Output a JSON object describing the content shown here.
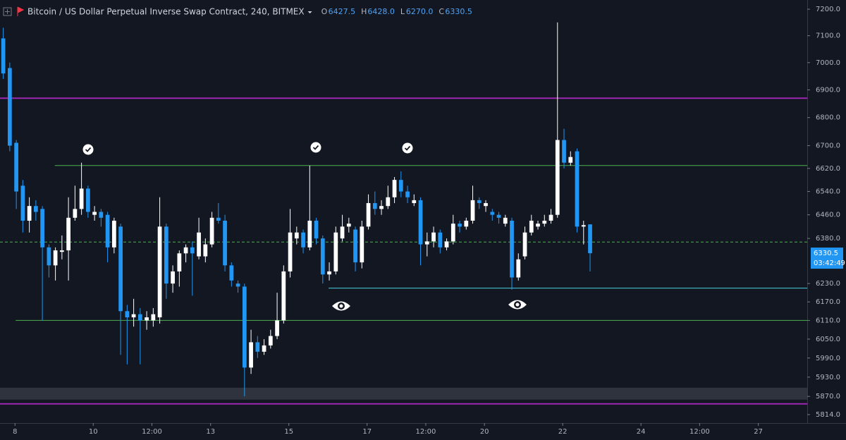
{
  "chart_data": {
    "type": "candlestick",
    "title": "Bitcoin / US Dollar Perpetual Inverse Swap Contract, 240, BITMEX",
    "legend": [
      {
        "key": "O",
        "text": "6427.5"
      },
      {
        "key": "H",
        "text": "6428.0"
      },
      {
        "key": "L",
        "text": "6270.0"
      },
      {
        "key": "C",
        "text": "6330.5"
      }
    ],
    "price_tag": {
      "price": "6330.5",
      "countdown": "03:42:49"
    },
    "up_color": "#ffffff",
    "down_color": "#2196f3",
    "log": true,
    "grid": false,
    "open": [
      7090,
      6980,
      6710,
      6560,
      6440,
      6490,
      6480,
      6350,
      6290,
      6335,
      6340,
      6450,
      6480,
      6550,
      6460,
      6470,
      6460,
      6350,
      6420,
      6140,
      6120,
      6130,
      6110,
      6110,
      6120,
      6420,
      6230,
      6270,
      6330,
      6350,
      6320,
      6320,
      6360,
      6450,
      6440,
      6290,
      6230,
      6220,
      5960,
      6040,
      6010,
      6030,
      6060,
      6110,
      6270,
      6380,
      6400,
      6350,
      6440,
      6380,
      6260,
      6270,
      6380,
      6420,
      6410,
      6300,
      6420,
      6500,
      6480,
      6490,
      6520,
      6580,
      6540,
      6500,
      6510,
      6360,
      6370,
      6400,
      6350,
      6370,
      6430,
      6420,
      6440,
      6510,
      6490,
      6470,
      6460,
      6430,
      6440,
      6250,
      6320,
      6400,
      6420,
      6430,
      6440,
      6460,
      6720,
      6640,
      6680,
      6420,
      6427.5
    ],
    "close": [
      6960,
      6700,
      6540,
      6440,
      6490,
      6470,
      6350,
      6290,
      6340,
      6340,
      6450,
      6480,
      6550,
      6470,
      6470,
      6450,
      6350,
      6440,
      6140,
      6120,
      6130,
      6110,
      6120,
      6130,
      6420,
      6230,
      6270,
      6330,
      6350,
      6330,
      6400,
      6360,
      6450,
      6440,
      6290,
      6240,
      6220,
      5960,
      6040,
      6010,
      6030,
      6060,
      6110,
      6270,
      6400,
      6400,
      6350,
      6440,
      6380,
      6260,
      6270,
      6400,
      6420,
      6430,
      6300,
      6420,
      6500,
      6480,
      6490,
      6520,
      6580,
      6540,
      6520,
      6510,
      6360,
      6370,
      6400,
      6350,
      6370,
      6430,
      6420,
      6440,
      6510,
      6500,
      6500,
      6460,
      6450,
      6450,
      6250,
      6310,
      6400,
      6440,
      6430,
      6440,
      6460,
      6720,
      6640,
      6660,
      6420,
      6425,
      6330.5
    ],
    "high": [
      7130,
      7000,
      6720,
      6580,
      6520,
      6510,
      6490,
      6360,
      6350,
      6390,
      6520,
      6560,
      6640,
      6560,
      6490,
      6480,
      6470,
      6450,
      6430,
      6160,
      6180,
      6150,
      6140,
      6150,
      6520,
      6430,
      6290,
      6340,
      6360,
      6370,
      6450,
      6380,
      6470,
      6500,
      6460,
      6300,
      6240,
      6230,
      6080,
      6060,
      6050,
      6080,
      6200,
      6290,
      6480,
      6420,
      6410,
      6630,
      6450,
      6390,
      6300,
      6420,
      6460,
      6450,
      6420,
      6440,
      6530,
      6540,
      6510,
      6560,
      6590,
      6610,
      6560,
      6530,
      6520,
      6400,
      6420,
      6410,
      6380,
      6460,
      6440,
      6450,
      6560,
      6520,
      6510,
      6480,
      6470,
      6460,
      6450,
      6330,
      6420,
      6460,
      6440,
      6460,
      6480,
      7150,
      6760,
      6680,
      6690,
      6440,
      6428
    ],
    "low": [
      6940,
      6680,
      6480,
      6400,
      6400,
      6440,
      6110,
      6250,
      6240,
      6310,
      6240,
      6440,
      6460,
      6450,
      6440,
      6420,
      6300,
      6330,
      6000,
      5970,
      6090,
      5970,
      6080,
      6090,
      6100,
      6180,
      6200,
      6220,
      6300,
      6190,
      6310,
      6300,
      6350,
      6430,
      6270,
      6220,
      6200,
      5870,
      5940,
      5990,
      6000,
      6020,
      6050,
      6100,
      6250,
      6360,
      6330,
      6340,
      6360,
      6230,
      6240,
      6260,
      6370,
      6400,
      6270,
      6280,
      6410,
      6460,
      6460,
      6480,
      6500,
      6520,
      6500,
      6490,
      6290,
      6320,
      6350,
      6330,
      6340,
      6360,
      6400,
      6410,
      6430,
      6480,
      6470,
      6440,
      6430,
      6420,
      6210,
      6240,
      6310,
      6390,
      6410,
      6420,
      6430,
      6450,
      6620,
      6630,
      6400,
      6360,
      6270
    ],
    "xlim": [
      -0.5,
      123.3
    ],
    "ylim": [
      5788,
      7235
    ],
    "xticks": [
      {
        "value": 1.8,
        "label": "8"
      },
      {
        "value": 13.8,
        "label": "10"
      },
      {
        "value": 22.8,
        "label": "12:00"
      },
      {
        "value": 31.8,
        "label": "13"
      },
      {
        "value": 43.8,
        "label": "15"
      },
      {
        "value": 55.8,
        "label": "17"
      },
      {
        "value": 64.8,
        "label": "12:00"
      },
      {
        "value": 73.8,
        "label": "20"
      },
      {
        "value": 85.8,
        "label": "22"
      },
      {
        "value": 97.8,
        "label": "24"
      },
      {
        "value": 106.8,
        "label": "12:00"
      },
      {
        "value": 115.8,
        "label": "27"
      }
    ],
    "yticks": [
      {
        "value": 7200,
        "label": "7200.0"
      },
      {
        "value": 7100,
        "label": "7100.0"
      },
      {
        "value": 7000,
        "label": "7000.0"
      },
      {
        "value": 6900,
        "label": "6900.0"
      },
      {
        "value": 6800,
        "label": "6800.0"
      },
      {
        "value": 6700,
        "label": "6700.0"
      },
      {
        "value": 6620,
        "label": "6620.0"
      },
      {
        "value": 6540,
        "label": "6540.0"
      },
      {
        "value": 6460,
        "label": "6460.0"
      },
      {
        "value": 6380,
        "label": "6380.0"
      },
      {
        "value": 6230,
        "label": "6230.0"
      },
      {
        "value": 6170,
        "label": "6170.0"
      },
      {
        "value": 6110,
        "label": "6110.0"
      },
      {
        "value": 6050,
        "label": "6050.0"
      },
      {
        "value": 5990,
        "label": "5990.0"
      },
      {
        "value": 5930,
        "label": "5930.0"
      },
      {
        "value": 5870,
        "label": "5870.0"
      },
      {
        "value": 5814,
        "label": "5814.0"
      }
    ],
    "levels": [
      {
        "value": 6870,
        "color": "#9c27b0",
        "start": -0.5,
        "style": "solid"
      },
      {
        "value": 6630,
        "color": "#4caf50",
        "start": 7.9,
        "style": "solid"
      },
      {
        "value": 6368,
        "color": "#4caf50",
        "start": -0.5,
        "style": "dashed"
      },
      {
        "value": 6215,
        "color": "#4dd0e1",
        "start": 49.9,
        "style": "solid"
      },
      {
        "value": 6110,
        "color": "#4caf50",
        "start": 1.9,
        "style": "solid"
      },
      {
        "value": 5847,
        "color": "#9c27b0",
        "start": -0.5,
        "style": "solid"
      }
    ],
    "band": {
      "from": 5860,
      "to": 5897,
      "color": "#434651"
    }
  }
}
